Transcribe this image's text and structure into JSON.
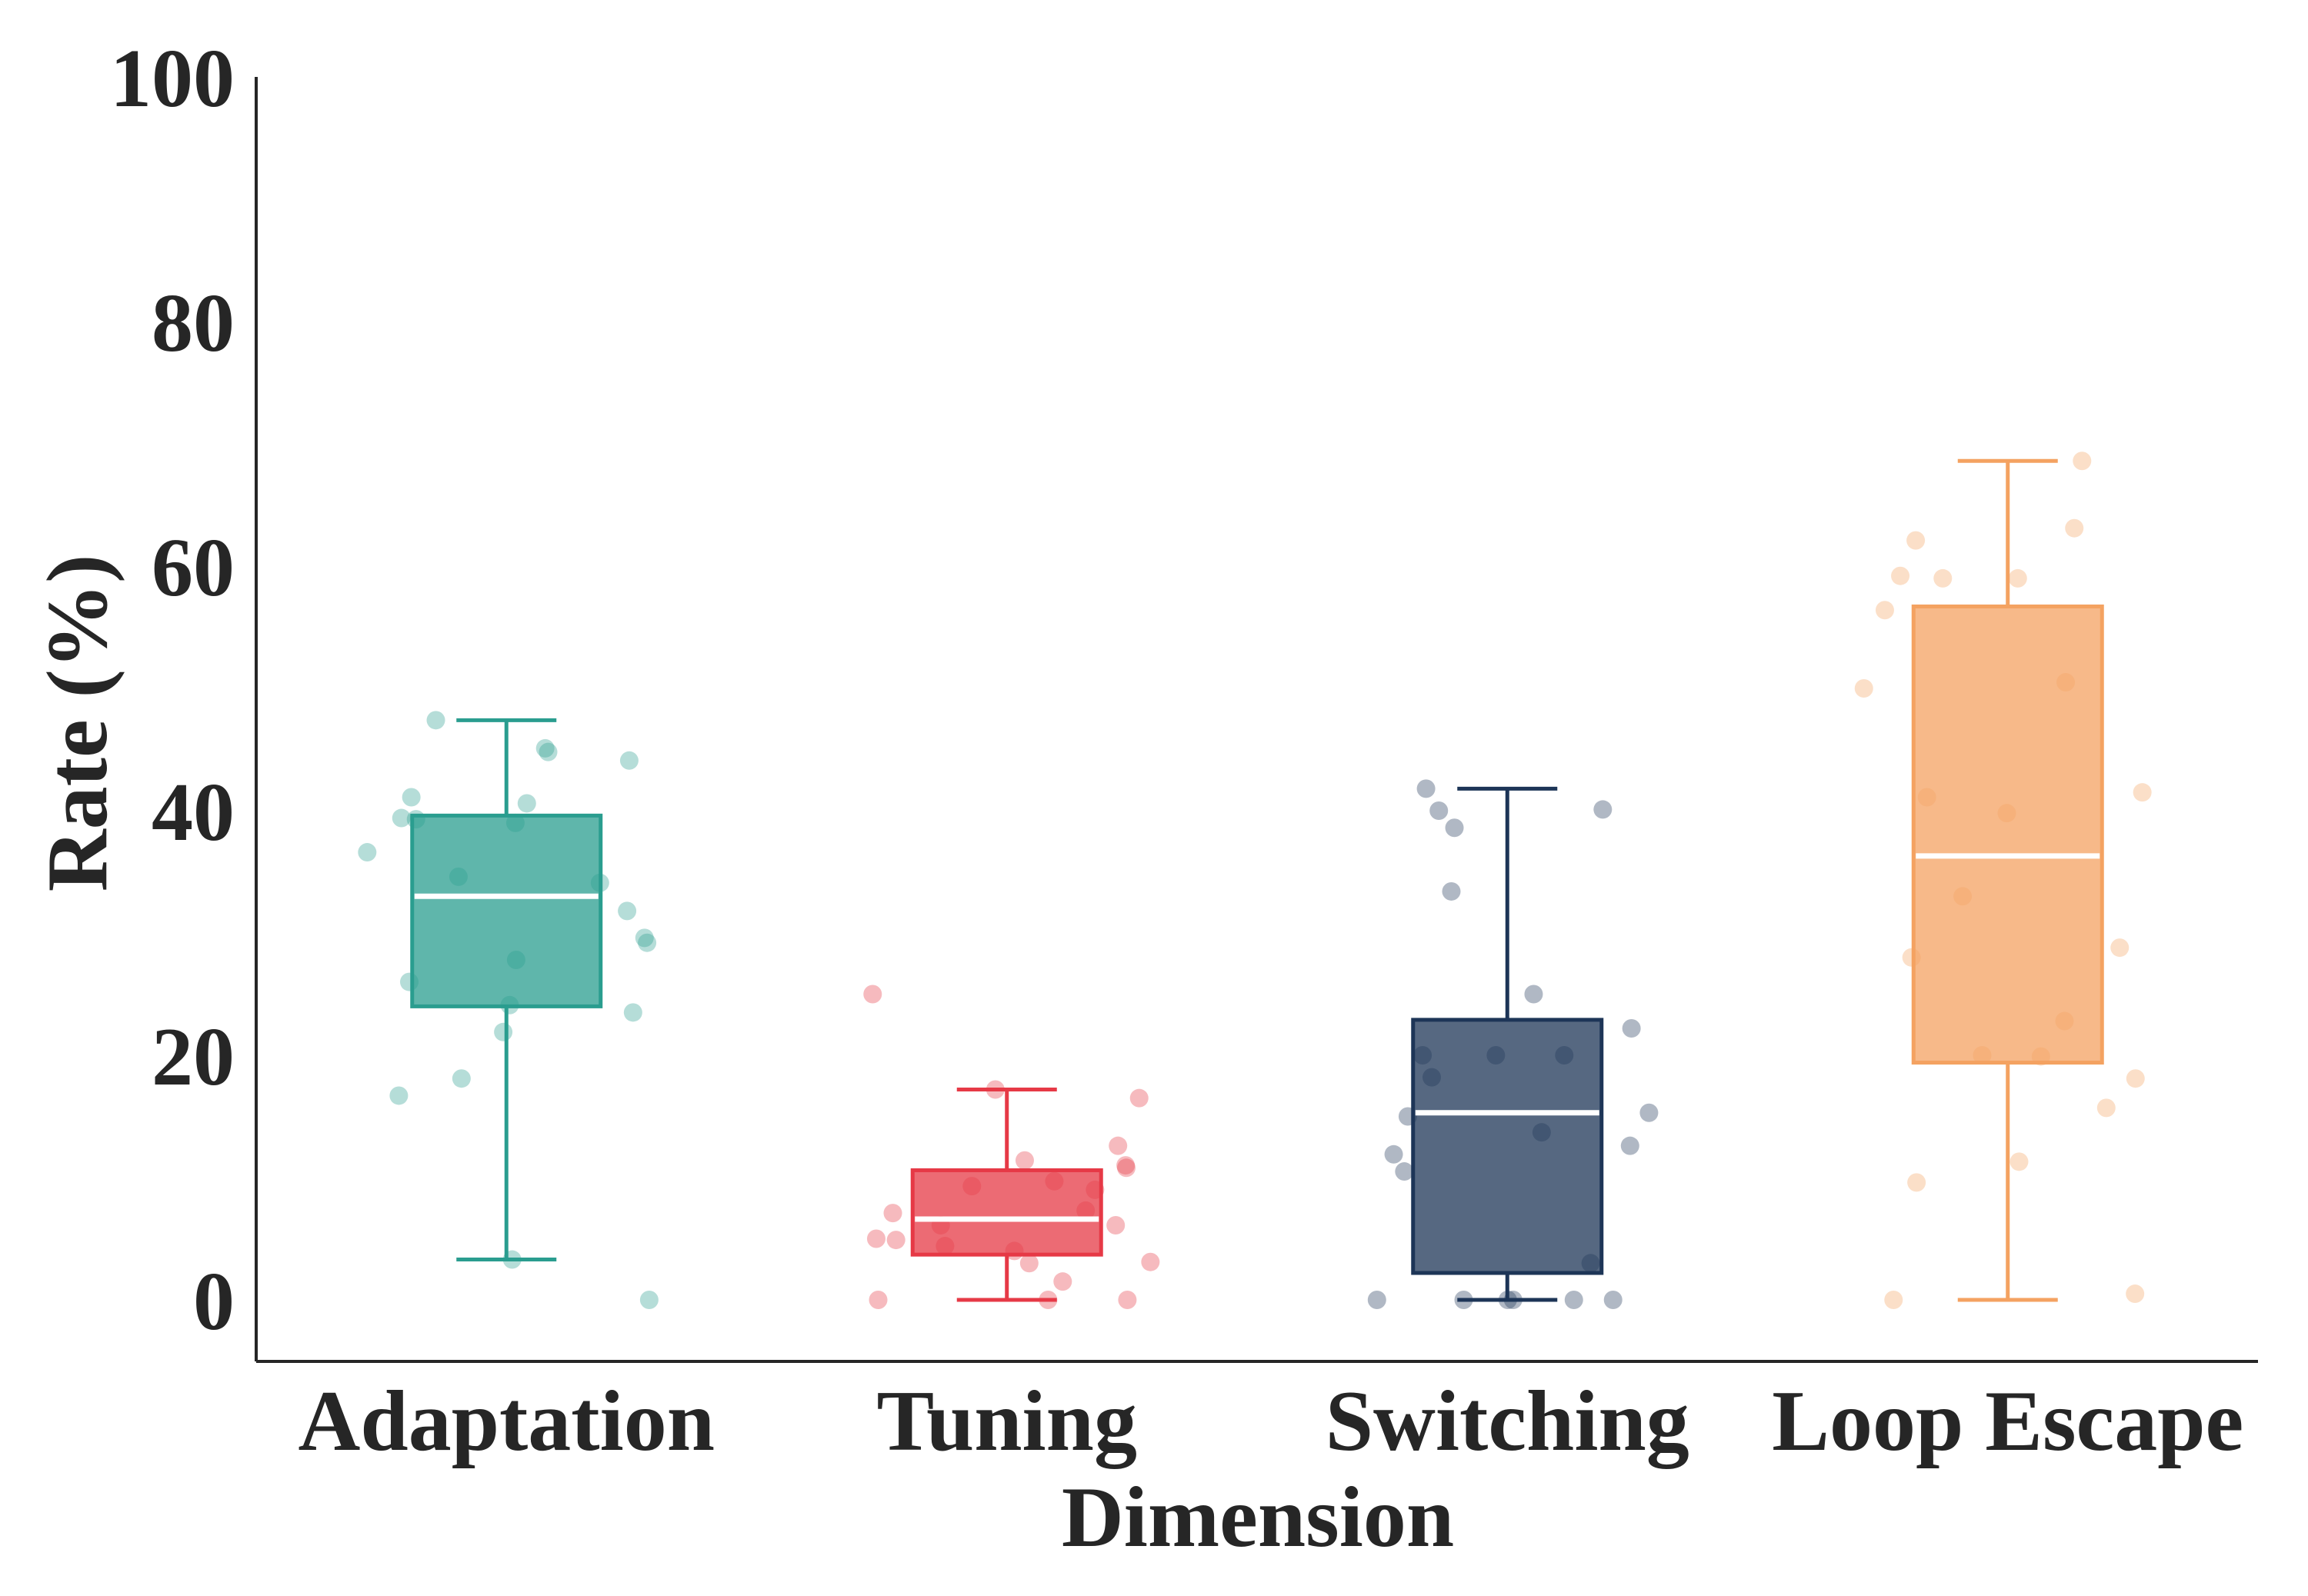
{
  "chart_data": {
    "type": "box",
    "title": "",
    "xlabel": "Dimension",
    "ylabel": "Rate (%)",
    "ylim": [
      -5,
      100
    ],
    "yticks": [
      "0",
      "20",
      "40",
      "60",
      "80",
      "100"
    ],
    "categories": [
      "Adaptation",
      "Tuning",
      "Switching",
      "Loop Escape"
    ],
    "boxes": [
      {
        "category": "Adaptation",
        "color": "#2a9d8f",
        "whisker_low": 3.3,
        "q1": 24.0,
        "median": 33.0,
        "q3": 39.6,
        "whisker_high": 47.4
      },
      {
        "category": "Tuning",
        "color": "#e63946",
        "whisker_low": 0.0,
        "q1": 3.7,
        "median": 6.6,
        "q3": 10.6,
        "whisker_high": 17.2
      },
      {
        "category": "Switching",
        "color": "#1d3557",
        "whisker_low": 0.0,
        "q1": 2.2,
        "median": 15.3,
        "q3": 22.9,
        "whisker_high": 41.8
      },
      {
        "category": "Loop Escape",
        "color": "#f4a261",
        "whisker_low": 0.0,
        "q1": 19.4,
        "median": 36.3,
        "q3": 56.7,
        "whisker_high": 68.6
      }
    ],
    "points": [
      {
        "category": "Adaptation",
        "values": [
          47.4,
          44.1,
          40.6,
          39.3,
          36.6,
          34.1,
          29.2,
          29.6,
          27.8,
          23.5,
          21.9,
          0.0,
          45.1,
          44.8,
          41.1,
          39.0,
          34.6,
          31.8,
          26.0,
          24.1,
          18.1,
          16.7,
          3.3,
          39.4
        ]
      },
      {
        "category": "Tuning",
        "values": [
          17.2,
          11.4,
          10.8,
          7.1,
          6.1,
          4.0,
          0.0,
          4.9,
          3.1,
          11.0,
          9.3,
          1.5,
          4.4,
          7.3,
          6.1,
          5.0,
          16.5,
          12.6,
          9.0,
          0.0,
          0.0,
          25.0,
          9.7,
          3.0
        ]
      },
      {
        "category": "Switching",
        "values": [
          41.8,
          38.6,
          33.4,
          25.0,
          20.0,
          0.0,
          0.0,
          3.0,
          0.0,
          40.1,
          13.7,
          10.5,
          20.0,
          15.3,
          20.0,
          15.0,
          22.2,
          18.2,
          12.6,
          11.9,
          40.0,
          0.0,
          0.0,
          0.0
        ]
      },
      {
        "category": "Loop Escape",
        "values": [
          68.6,
          63.1,
          62.1,
          59.0,
          59.2,
          59.0,
          56.4,
          50.5,
          50.0,
          41.1,
          41.5,
          39.8,
          33.0,
          28.8,
          28.0,
          22.8,
          20.0,
          19.9,
          18.1,
          15.7,
          11.3,
          9.6,
          0.0,
          0.5
        ]
      }
    ]
  }
}
